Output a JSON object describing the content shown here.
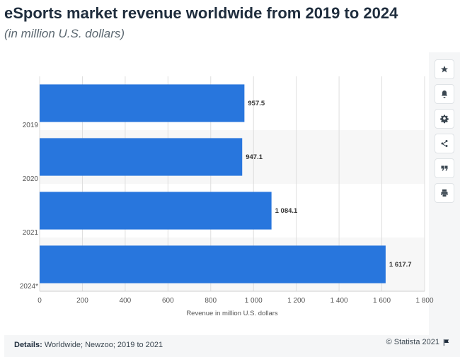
{
  "header": {
    "title": "eSports market revenue worldwide from 2019 to 2024",
    "subtitle": "(in million U.S. dollars)"
  },
  "toolbar": {
    "icons": [
      "star-icon",
      "bell-icon",
      "gear-icon",
      "share-icon",
      "quote-icon",
      "print-icon"
    ]
  },
  "footer": {
    "details_label": "Details:",
    "details_text": "Worldwide; Newzoo; 2019 to 2021",
    "copyright": "© Statista 2021",
    "flag_icon": "flag-icon"
  },
  "chart_data": {
    "type": "bar",
    "orientation": "horizontal",
    "categories": [
      "2019",
      "2020",
      "2021",
      "2024*"
    ],
    "values": [
      957.5,
      947.1,
      1084.1,
      1617.7
    ],
    "value_labels": [
      "957.5",
      "947.1",
      "1 084.1",
      "1 617.7"
    ],
    "xlabel": "Revenue in million U.S. dollars",
    "ylabel": "",
    "xlim": [
      0,
      1800
    ],
    "ticks": [
      0,
      200,
      400,
      600,
      800,
      1000,
      1200,
      1400,
      1600,
      1800
    ],
    "tick_labels": [
      "0",
      "200",
      "400",
      "600",
      "800",
      "1 000",
      "1 200",
      "1 400",
      "1 600",
      "1 800"
    ],
    "bar_color": "#2876dd",
    "grid": true,
    "legend": "none"
  }
}
